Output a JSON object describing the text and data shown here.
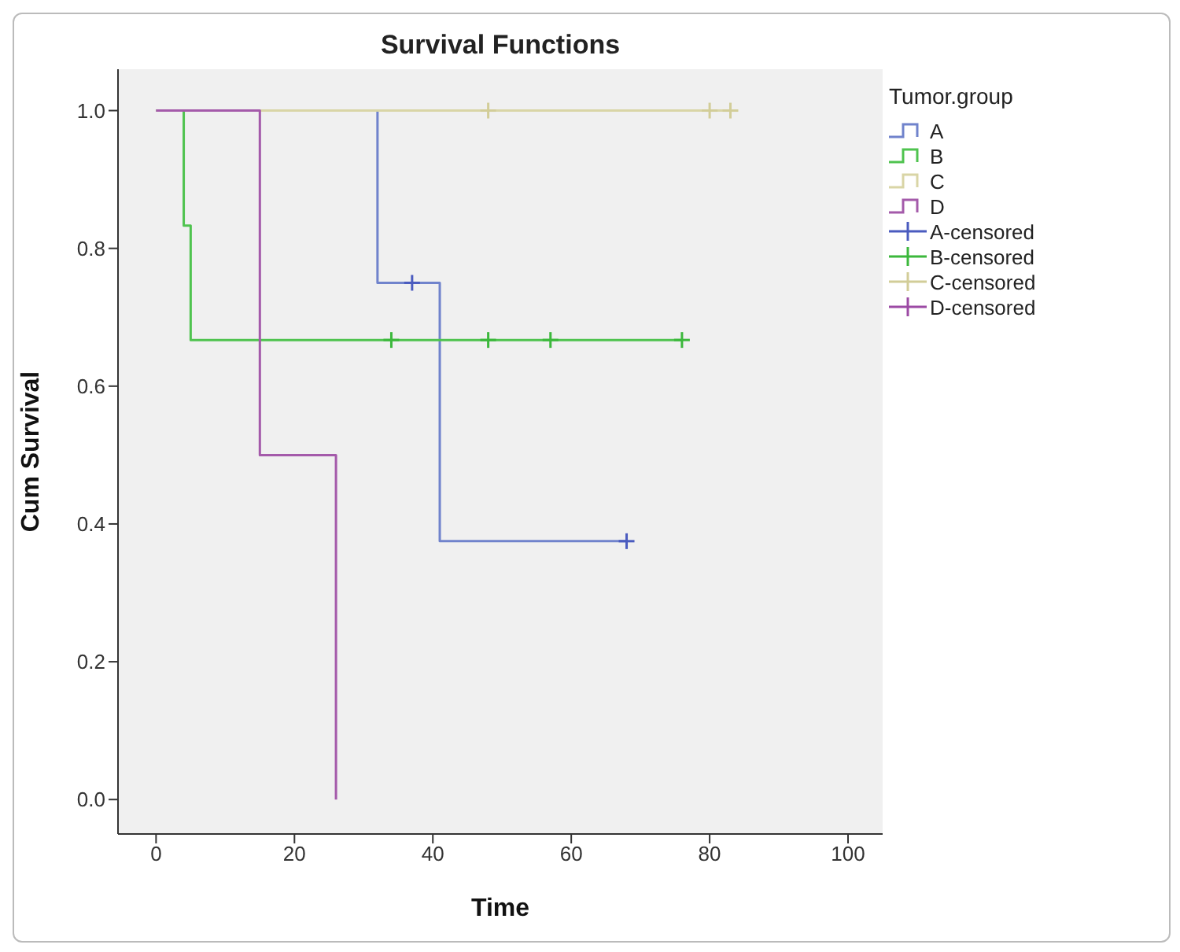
{
  "chart_data": {
    "type": "step",
    "title": "Survival Functions",
    "xlabel": "Time",
    "ylabel": "Cum Survival",
    "legend_title": "Tumor.group",
    "legend": "right",
    "grid": false,
    "xlim": [
      -5.5,
      105
    ],
    "xticks": [
      0,
      20,
      40,
      60,
      80,
      100
    ],
    "ylim": [
      -0.05,
      1.06
    ],
    "yticks": [
      {
        "value": 0,
        "label": "0.0"
      },
      {
        "value": 0.2,
        "label": "0.2"
      },
      {
        "value": 0.4,
        "label": "0.4"
      },
      {
        "value": 0.6,
        "label": "0.6"
      },
      {
        "value": 0.8,
        "label": "0.8"
      },
      {
        "value": 1,
        "label": "1.0"
      }
    ],
    "series": [
      {
        "name": "A",
        "color": "#7083cc",
        "x": [
          0,
          32,
          41,
          68
        ],
        "values": [
          1,
          0.75,
          0.375,
          0.375
        ]
      },
      {
        "name": "B",
        "color": "#4fc34f",
        "x": [
          0,
          4,
          5,
          76
        ],
        "values": [
          1,
          0.833,
          0.667,
          0.667
        ]
      },
      {
        "name": "C",
        "color": "#d9d5a6",
        "x": [
          0,
          83
        ],
        "values": [
          1,
          1
        ]
      },
      {
        "name": "D",
        "color": "#a45aaa",
        "x": [
          0,
          15,
          26
        ],
        "values": [
          1,
          0.5,
          0
        ]
      },
      {
        "name": "A-censored",
        "type": "scatter",
        "marker": "cross",
        "color": "#4a5bbf",
        "x": [
          37,
          68
        ],
        "values": [
          0.75,
          0.375
        ]
      },
      {
        "name": "B-censored",
        "type": "scatter",
        "marker": "cross",
        "color": "#3cb83c",
        "x": [
          34,
          48,
          57,
          76
        ],
        "values": [
          0.667,
          0.667,
          0.667,
          0.667
        ]
      },
      {
        "name": "C-censored",
        "type": "scatter",
        "marker": "cross",
        "color": "#d2cd98",
        "x": [
          48,
          80,
          83
        ],
        "values": [
          1,
          1,
          1
        ]
      },
      {
        "name": "D-censored",
        "type": "scatter",
        "marker": "cross",
        "color": "#9c4aa4"
      }
    ]
  }
}
